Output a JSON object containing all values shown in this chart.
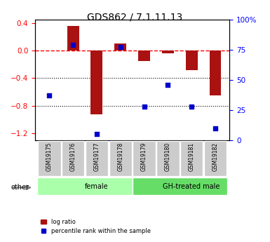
{
  "title": "GDS862 / 7.1.11.13",
  "samples": [
    "GSM19175",
    "GSM19176",
    "GSM19177",
    "GSM19178",
    "GSM19179",
    "GSM19180",
    "GSM19181",
    "GSM19182"
  ],
  "log_ratio": [
    0.0,
    0.35,
    -0.92,
    0.1,
    -0.15,
    -0.04,
    -0.28,
    -0.65
  ],
  "percentile_rank": [
    37,
    79,
    5,
    77,
    28,
    46,
    28,
    10
  ],
  "groups": [
    {
      "label": "female",
      "start": 0,
      "end": 4,
      "color": "#aaffaa"
    },
    {
      "label": "GH-treated male",
      "start": 4,
      "end": 8,
      "color": "#66dd66"
    }
  ],
  "bar_color": "#aa1111",
  "dot_color": "#0000cc",
  "ylim_left": [
    -1.3,
    0.45
  ],
  "ylim_right": [
    0,
    100
  ],
  "yticks_left": [
    0.4,
    0.0,
    -0.4,
    -0.8,
    -1.2
  ],
  "yticks_right": [
    100,
    75,
    50,
    25,
    0
  ],
  "hline_y": 0.0,
  "dotted_lines": [
    -0.4,
    -0.8
  ],
  "bar_width": 0.5
}
